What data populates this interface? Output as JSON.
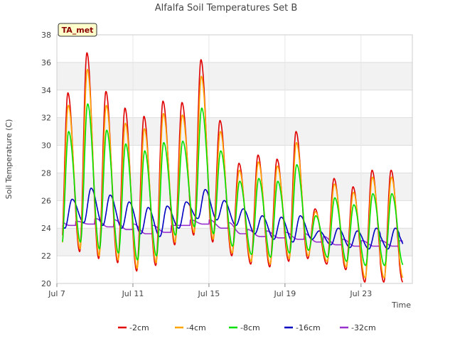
{
  "chart_data": {
    "type": "line",
    "title": "Alfalfa Soil Temperatures Set B",
    "xlabel": "Time",
    "ylabel": "Soil Temperature (C)",
    "xlim": [
      0,
      18.7
    ],
    "ylim": [
      20,
      38
    ],
    "yticks": [
      20,
      22,
      24,
      26,
      28,
      30,
      32,
      34,
      36,
      38
    ],
    "xticks": [
      {
        "label": "Jul 7",
        "day": 0
      },
      {
        "label": "Jul 11",
        "day": 4
      },
      {
        "label": "Jul 15",
        "day": 8
      },
      {
        "label": "Jul 19",
        "day": 12
      },
      {
        "label": "Jul 23",
        "day": 16
      }
    ],
    "grid": true,
    "legend_position": "bottom",
    "station_label": "TA_met",
    "series": [
      {
        "name": "-2cm",
        "color": "#e00000",
        "daily_max": [
          33.8,
          36.7,
          33.9,
          32.7,
          32.1,
          33.2,
          33.1,
          36.2,
          31.8,
          28.7,
          29.3,
          29.0,
          31.0,
          25.4,
          27.6,
          27.0,
          28.2
        ],
        "daily_min": [
          21.5,
          22.3,
          21.8,
          21.5,
          20.9,
          21.3,
          22.8,
          23.5,
          23.0,
          22.0,
          21.4,
          21.2,
          21.6,
          21.8,
          21.4,
          21.0,
          20.1
        ]
      },
      {
        "name": "-4cm",
        "color": "#ffa500",
        "daily_max": [
          32.9,
          35.5,
          32.9,
          31.6,
          31.2,
          32.3,
          32.2,
          35.0,
          31.0,
          28.2,
          28.8,
          28.5,
          30.2,
          25.2,
          27.2,
          26.6,
          27.7
        ],
        "daily_min": [
          21.8,
          22.5,
          22.0,
          21.7,
          21.1,
          21.5,
          23.0,
          23.7,
          23.2,
          22.2,
          21.6,
          21.4,
          21.8,
          22.0,
          21.6,
          21.2,
          20.4
        ]
      },
      {
        "name": "-8cm",
        "color": "#00e000",
        "daily_max": [
          31.0,
          33.0,
          31.1,
          30.1,
          29.6,
          30.2,
          30.3,
          32.7,
          29.6,
          27.4,
          27.6,
          27.4,
          28.6,
          24.9,
          26.2,
          25.7,
          26.5
        ],
        "daily_min": [
          22.5,
          23.0,
          22.5,
          22.2,
          21.7,
          22.0,
          23.5,
          24.1,
          23.6,
          22.7,
          22.1,
          21.9,
          22.2,
          22.4,
          21.9,
          21.6,
          21.3
        ]
      },
      {
        "name": "-16cm",
        "color": "#0000c0",
        "daily_max": [
          26.1,
          26.9,
          26.4,
          25.9,
          25.5,
          25.6,
          25.9,
          26.8,
          26.0,
          25.4,
          24.9,
          24.8,
          24.9,
          23.8,
          24.0,
          23.8,
          24.0
        ],
        "daily_min": [
          24.0,
          24.4,
          24.2,
          24.0,
          23.6,
          23.4,
          24.0,
          24.7,
          24.6,
          24.2,
          23.6,
          23.2,
          23.0,
          23.2,
          22.8,
          22.6,
          22.5
        ]
      },
      {
        "name": "-32cm",
        "color": "#9932cc",
        "daily_max": [
          24.6,
          24.5,
          24.7,
          24.6,
          24.3,
          24.2,
          24.2,
          24.6,
          24.6,
          24.4,
          23.9,
          23.8,
          23.7,
          23.6,
          23.4,
          23.2,
          23.1
        ],
        "daily_min": [
          24.2,
          24.2,
          24.3,
          24.1,
          23.9,
          23.6,
          23.7,
          24.2,
          24.3,
          24.0,
          23.6,
          23.4,
          23.3,
          23.2,
          23.0,
          22.8,
          22.7
        ]
      }
    ]
  }
}
